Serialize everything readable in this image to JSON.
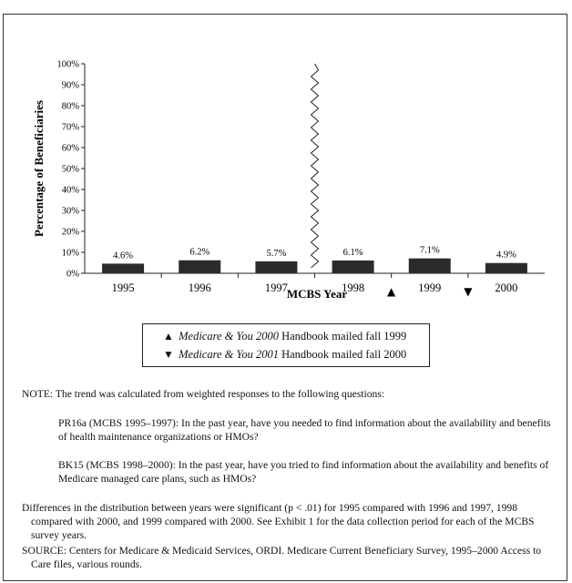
{
  "chart_data": {
    "type": "bar",
    "categories": [
      "1995",
      "1996",
      "1997",
      "1998",
      "1999",
      "2000"
    ],
    "values": [
      4.6,
      6.2,
      5.7,
      6.1,
      7.1,
      4.9
    ],
    "data_labels": [
      "4.6%",
      "6.2%",
      "5.7%",
      "6.1%",
      "7.1%",
      "4.9%"
    ],
    "xlabel": "MCBS Year",
    "ylabel": "Percentage of Beneficiaries",
    "ylim": [
      0,
      100
    ],
    "y_ticks": [
      "0%",
      "10%",
      "20%",
      "30%",
      "40%",
      "50%",
      "60%",
      "70%",
      "80%",
      "90%",
      "100%"
    ],
    "y_tick_values": [
      0,
      10,
      20,
      30,
      40,
      50,
      60,
      70,
      80,
      90,
      100
    ],
    "grid": false,
    "bar_color": "#2b2b2b",
    "axis_break_between": [
      "1997",
      "1998"
    ],
    "markers": [
      {
        "symbol": "▲",
        "between": [
          "1998",
          "1999"
        ]
      },
      {
        "symbol": "▼",
        "between": [
          "1999",
          "2000"
        ]
      }
    ]
  },
  "legend": {
    "item1": {
      "symbol": "▲",
      "title": "Medicare & You 2000",
      "rest": " Handbook mailed fall 1999"
    },
    "item2": {
      "symbol": "▼",
      "title": "Medicare & You 2001",
      "rest": " Handbook mailed fall 2000"
    }
  },
  "notes": {
    "note": "NOTE:  The trend was calculated from weighted responses to the following questions:",
    "q1": "PR16a (MCBS 1995–1997):  In the past year, have you needed to find information about the availability and benefits of health maintenance organizations or HMOs?",
    "q2": "BK15 (MCBS 1998–2000):  In the past year, have you tried to find information about the availability and benefits of Medicare managed care plans, such as HMOs?",
    "differences": "Differences in the distribution between years were significant (p < .01) for 1995 compared with 1996 and 1997, 1998 compared with 2000, and 1999 compared with 2000.  See Exhibit 1 for the data collection period for each of the MCBS survey years.",
    "source": "SOURCE:  Centers for Medicare & Medicaid Services, ORDI.  Medicare Current Beneficiary Survey, 1995–2000 Access to Care files, various rounds."
  }
}
